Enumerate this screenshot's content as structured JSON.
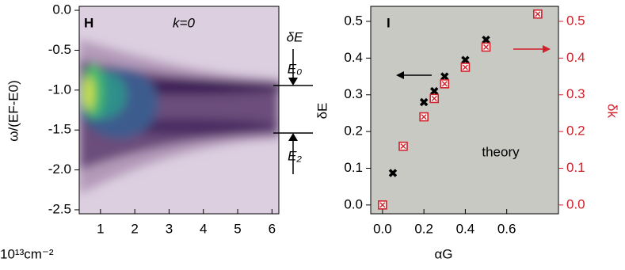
{
  "chart_data": [
    {
      "type": "heatmap",
      "panel_label": "H",
      "annotation": "k=0",
      "ylabel": "ω/(EF-E0)",
      "xlabel": "10¹³cm⁻²",
      "markers": [
        "δE",
        "E₀",
        "E₂"
      ],
      "xlim": [
        0.38,
        6.2
      ],
      "xticks": [
        1,
        2,
        3,
        4,
        5,
        6
      ],
      "ylim": [
        -2.55,
        0.05
      ],
      "yticks": [
        {
          "value": 0,
          "label": "0.0"
        },
        -0.5,
        {
          "value": -1,
          "label": "-1.0"
        },
        -1.5,
        {
          "value": -2,
          "label": "-2.0"
        },
        -2.5
      ]
    },
    {
      "type": "scatter",
      "panel_label": "I",
      "annotation": "theory",
      "xlabel": "αG",
      "ylabel": "δE",
      "y2label": "δk",
      "x": [
        0,
        0.05,
        0.1,
        0.2,
        0.25,
        0.3,
        0.4,
        0.5,
        0.75
      ],
      "series": [
        {
          "name": "δE",
          "color": "#000000",
          "values": [
            0,
            0.087,
            0.16,
            0.28,
            0.31,
            0.35,
            0.395,
            0.45,
            null
          ]
        },
        {
          "name": "δk",
          "color": "#d0202a",
          "axis": "y2",
          "values": [
            0,
            null,
            0.16,
            0.24,
            0.29,
            0.33,
            0.375,
            0.43,
            0.52
          ]
        }
      ],
      "xlim": [
        -0.057,
        0.85
      ],
      "xticks": [
        {
          "value": 0,
          "label": "0.0"
        },
        0.2,
        0.4,
        0.6
      ],
      "ylim": [
        -0.024,
        0.541
      ],
      "yticks": [
        {
          "value": 0,
          "label": "0.0"
        },
        0.1,
        0.2,
        0.3,
        0.4,
        0.5
      ],
      "y2lim": [
        -0.024,
        0.541
      ],
      "y2ticks": [
        {
          "value": 0,
          "label": "0.0"
        },
        0.1,
        0.2,
        0.3,
        0.4,
        0.5
      ]
    }
  ]
}
